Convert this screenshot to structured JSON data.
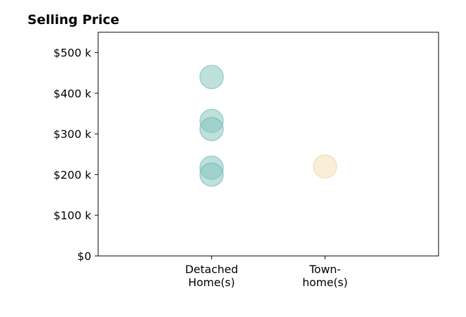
{
  "chart_data": {
    "type": "scatter",
    "title": "Selling Price",
    "xlabel": "",
    "ylabel": "",
    "categories": [
      {
        "lines": [
          "Detached",
          "Home(s)"
        ]
      },
      {
        "lines": [
          "Town-",
          "home(s)"
        ]
      }
    ],
    "y_ticks": [
      {
        "value": 0,
        "label": "$0"
      },
      {
        "value": 100000,
        "label": "$100 k"
      },
      {
        "value": 200000,
        "label": "$200 k"
      },
      {
        "value": 300000,
        "label": "$300 k"
      },
      {
        "value": 400000,
        "label": "$400 k"
      },
      {
        "value": 500000,
        "label": "$500 k"
      }
    ],
    "ylim": [
      0,
      550000
    ],
    "xlim": [
      -1,
      2
    ],
    "grid": false,
    "series": [
      {
        "category_index": 0,
        "color": "#7fc4bc",
        "edge_color": "#5fb0a7",
        "opacity": 0.5,
        "values": [
          440000,
          332000,
          312000,
          217000,
          200000
        ]
      },
      {
        "category_index": 1,
        "color": "#f4deb0",
        "edge_color": "#ead09a",
        "opacity": 0.5,
        "values": [
          220000
        ]
      }
    ]
  }
}
